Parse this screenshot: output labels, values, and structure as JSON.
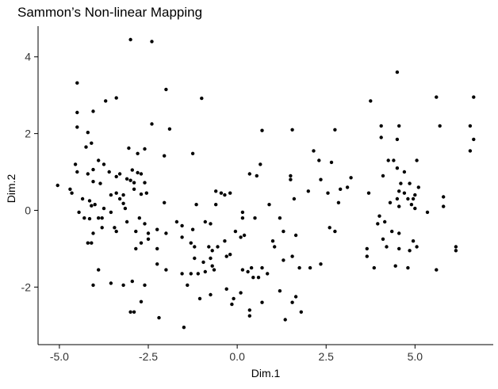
{
  "chart_data": {
    "type": "scatter",
    "title": "Sammon’s Non-linear Mapping",
    "xlabel": "Dim.1",
    "ylabel": "Dim.2",
    "xlim": [
      -5.6,
      7.2
    ],
    "ylim": [
      -3.5,
      4.8
    ],
    "xticks": [
      -5.0,
      -2.5,
      0.0,
      2.5,
      5.0
    ],
    "xtick_labels": [
      "-5.0",
      "-2.5",
      "0.0",
      "2.5",
      "5.0"
    ],
    "yticks": [
      -2,
      0,
      2,
      4
    ],
    "ytick_labels": [
      "-2",
      "0",
      "2",
      "4"
    ],
    "grid": false,
    "point_color": "#000000",
    "axis_color": "#000000",
    "points": [
      [
        -3.0,
        4.45
      ],
      [
        -2.4,
        4.4
      ],
      [
        -4.5,
        3.32
      ],
      [
        -3.4,
        2.93
      ],
      [
        -2.0,
        3.15
      ],
      [
        -1.0,
        2.92
      ],
      [
        -4.05,
        2.58
      ],
      [
        -4.5,
        2.55
      ],
      [
        -4.2,
        2.03
      ],
      [
        -4.5,
        2.17
      ],
      [
        -2.4,
        2.25
      ],
      [
        -1.9,
        2.12
      ],
      [
        -4.1,
        1.75
      ],
      [
        -4.25,
        1.65
      ],
      [
        -3.05,
        1.62
      ],
      [
        -2.8,
        1.48
      ],
      [
        -2.05,
        1.42
      ],
      [
        -2.6,
        1.6
      ],
      [
        -3.9,
        1.3
      ],
      [
        -3.75,
        1.2
      ],
      [
        -4.55,
        1.2
      ],
      [
        -4.5,
        1.0
      ],
      [
        -4.05,
        1.06
      ],
      [
        -4.2,
        0.95
      ],
      [
        -3.6,
        1.0
      ],
      [
        -3.3,
        0.95
      ],
      [
        -2.95,
        1.05
      ],
      [
        -2.8,
        0.98
      ],
      [
        -2.7,
        0.95
      ],
      [
        -1.25,
        1.48
      ],
      [
        -3.1,
        0.82
      ],
      [
        -3.4,
        0.88
      ],
      [
        -3.0,
        0.78
      ],
      [
        -2.9,
        0.72
      ],
      [
        -2.6,
        0.72
      ],
      [
        -4.05,
        0.75
      ],
      [
        -3.85,
        0.7
      ],
      [
        -2.9,
        0.55
      ],
      [
        -2.7,
        0.42
      ],
      [
        -2.55,
        0.45
      ],
      [
        -3.3,
        0.3
      ],
      [
        -3.55,
        0.4
      ],
      [
        -3.4,
        0.45
      ],
      [
        -3.2,
        0.4
      ],
      [
        -5.05,
        0.65
      ],
      [
        -4.7,
        0.55
      ],
      [
        -4.65,
        0.45
      ],
      [
        -4.15,
        0.25
      ],
      [
        -4.35,
        0.3
      ],
      [
        -4.0,
        0.15
      ],
      [
        -4.1,
        0.12
      ],
      [
        -3.75,
        0.05
      ],
      [
        -3.2,
        0.18
      ],
      [
        -2.05,
        0.2
      ],
      [
        -1.15,
        0.15
      ],
      [
        -0.6,
        0.15
      ],
      [
        -4.45,
        -0.05
      ],
      [
        -4.3,
        -0.2
      ],
      [
        -4.15,
        -0.22
      ],
      [
        -3.9,
        -0.2
      ],
      [
        -3.8,
        -0.2
      ],
      [
        -3.55,
        -0.05
      ],
      [
        -3.15,
        0.05
      ],
      [
        -2.75,
        -0.2
      ],
      [
        -3.1,
        -0.3
      ],
      [
        -3.45,
        -0.45
      ],
      [
        -3.4,
        -0.55
      ],
      [
        -3.8,
        -0.45
      ],
      [
        -2.6,
        -0.35
      ],
      [
        -2.85,
        -0.55
      ],
      [
        -2.5,
        -0.6
      ],
      [
        -2.25,
        -0.5
      ],
      [
        -2.5,
        -0.75
      ],
      [
        -2.7,
        -0.85
      ],
      [
        -2.0,
        -0.6
      ],
      [
        -1.7,
        -0.3
      ],
      [
        -1.55,
        -0.4
      ],
      [
        -1.25,
        -0.5
      ],
      [
        -0.9,
        -0.3
      ],
      [
        -0.75,
        -0.35
      ],
      [
        -4.05,
        -0.6
      ],
      [
        -4.1,
        -0.85
      ],
      [
        -4.2,
        -0.85
      ],
      [
        -2.85,
        -1.0
      ],
      [
        -2.25,
        -1.0
      ],
      [
        -0.35,
        0.4
      ],
      [
        -0.6,
        0.5
      ],
      [
        -0.45,
        0.45
      ],
      [
        -0.2,
        0.45
      ],
      [
        0.15,
        -0.05
      ],
      [
        0.15,
        -0.2
      ],
      [
        0.5,
        -0.2
      ],
      [
        -0.05,
        -0.55
      ],
      [
        0.2,
        -0.65
      ],
      [
        0.1,
        -0.7
      ],
      [
        -0.35,
        -0.8
      ],
      [
        -0.55,
        -0.95
      ],
      [
        -0.8,
        -0.95
      ],
      [
        -1.55,
        -0.7
      ],
      [
        -1.3,
        -0.85
      ],
      [
        -1.2,
        -0.95
      ],
      [
        -1.2,
        -1.25
      ],
      [
        -0.95,
        -1.35
      ],
      [
        -0.7,
        -1.05
      ],
      [
        -0.75,
        -1.25
      ],
      [
        -0.7,
        -1.45
      ],
      [
        -0.65,
        -1.55
      ],
      [
        -0.3,
        -1.2
      ],
      [
        -0.2,
        -1.15
      ],
      [
        -0.9,
        -1.6
      ],
      [
        -1.1,
        -1.65
      ],
      [
        -1.3,
        -1.65
      ],
      [
        -1.55,
        -1.65
      ],
      [
        -1.4,
        -1.95
      ],
      [
        -1.05,
        -2.3
      ],
      [
        -0.75,
        -2.2
      ],
      [
        -0.3,
        -2.05
      ],
      [
        -0.15,
        -2.45
      ],
      [
        -0.1,
        -2.3
      ],
      [
        0.1,
        -2.15
      ],
      [
        0.15,
        -1.55
      ],
      [
        0.3,
        -1.6
      ],
      [
        0.4,
        -1.5
      ],
      [
        0.45,
        -1.75
      ],
      [
        0.6,
        -1.75
      ],
      [
        0.7,
        -1.5
      ],
      [
        0.85,
        -1.65
      ],
      [
        0.7,
        -2.4
      ],
      [
        0.35,
        -2.6
      ],
      [
        0.35,
        -2.75
      ],
      [
        1.2,
        -2.1
      ],
      [
        1.35,
        -2.85
      ],
      [
        1.55,
        -2.4
      ],
      [
        1.65,
        -2.25
      ],
      [
        1.8,
        -2.65
      ],
      [
        1.3,
        -1.3
      ],
      [
        1.55,
        -1.2
      ],
      [
        1.75,
        -1.5
      ],
      [
        2.05,
        -1.5
      ],
      [
        2.35,
        -1.4
      ],
      [
        1.65,
        -0.65
      ],
      [
        1.3,
        -0.55
      ],
      [
        1.0,
        -0.8
      ],
      [
        1.05,
        -0.95
      ],
      [
        1.2,
        -0.2
      ],
      [
        2.0,
        0.5
      ],
      [
        2.35,
        0.8
      ],
      [
        2.15,
        1.55
      ],
      [
        2.3,
        1.3
      ],
      [
        2.65,
        1.25
      ],
      [
        2.75,
        2.1
      ],
      [
        2.6,
        -0.45
      ],
      [
        2.75,
        -0.55
      ],
      [
        2.55,
        0.45
      ],
      [
        2.85,
        0.2
      ],
      [
        2.9,
        0.55
      ],
      [
        3.1,
        0.6
      ],
      [
        3.2,
        0.85
      ],
      [
        0.35,
        0.95
      ],
      [
        0.55,
        0.9
      ],
      [
        0.65,
        1.2
      ],
      [
        0.7,
        2.08
      ],
      [
        1.55,
        2.1
      ],
      [
        1.5,
        0.9
      ],
      [
        1.5,
        0.8
      ],
      [
        1.6,
        0.3
      ],
      [
        0.9,
        0.15
      ],
      [
        -2.2,
        -2.8
      ],
      [
        -1.5,
        -3.05
      ],
      [
        -2.9,
        -2.65
      ],
      [
        -2.7,
        -2.38
      ],
      [
        -3.0,
        -2.65
      ],
      [
        -2.6,
        -1.95
      ],
      [
        -2.25,
        -1.4
      ],
      [
        -2.0,
        -1.55
      ],
      [
        -3.2,
        -1.95
      ],
      [
        -3.55,
        -1.9
      ],
      [
        -3.9,
        -1.55
      ],
      [
        -4.05,
        -1.95
      ],
      [
        -2.95,
        -1.85
      ],
      [
        -3.7,
        2.85
      ],
      [
        3.75,
        2.85
      ],
      [
        4.05,
        2.2
      ],
      [
        4.55,
        2.2
      ],
      [
        4.05,
        1.9
      ],
      [
        4.5,
        1.85
      ],
      [
        4.4,
        1.3
      ],
      [
        4.5,
        1.1
      ],
      [
        4.7,
        1.0
      ],
      [
        4.25,
        1.3
      ],
      [
        4.1,
        0.9
      ],
      [
        5.05,
        1.3
      ],
      [
        4.85,
        0.7
      ],
      [
        4.6,
        0.7
      ],
      [
        4.55,
        0.5
      ],
      [
        4.7,
        0.45
      ],
      [
        5.1,
        0.6
      ],
      [
        5.0,
        0.4
      ],
      [
        4.95,
        0.3
      ],
      [
        4.8,
        0.3
      ],
      [
        4.5,
        0.3
      ],
      [
        4.3,
        0.2
      ],
      [
        4.55,
        0.1
      ],
      [
        4.9,
        0.15
      ],
      [
        5.0,
        0.05
      ],
      [
        5.35,
        -0.05
      ],
      [
        3.7,
        0.45
      ],
      [
        3.95,
        -0.35
      ],
      [
        4.0,
        -0.15
      ],
      [
        4.15,
        -0.3
      ],
      [
        4.35,
        -0.55
      ],
      [
        4.55,
        -0.6
      ],
      [
        4.95,
        -0.8
      ],
      [
        4.85,
        -1.05
      ],
      [
        5.05,
        -0.95
      ],
      [
        4.1,
        -0.75
      ],
      [
        4.2,
        -0.95
      ],
      [
        4.55,
        -1.0
      ],
      [
        4.45,
        -1.45
      ],
      [
        4.8,
        -1.5
      ],
      [
        3.65,
        -1.0
      ],
      [
        3.65,
        -1.2
      ],
      [
        3.85,
        -1.5
      ],
      [
        5.6,
        -1.55
      ],
      [
        6.15,
        -0.95
      ],
      [
        6.15,
        -1.05
      ],
      [
        5.8,
        0.35
      ],
      [
        5.8,
        0.1
      ],
      [
        4.5,
        3.6
      ],
      [
        5.6,
        2.95
      ],
      [
        5.7,
        2.2
      ],
      [
        6.65,
        2.95
      ],
      [
        6.55,
        2.2
      ],
      [
        6.65,
        1.85
      ],
      [
        6.55,
        1.55
      ]
    ]
  }
}
